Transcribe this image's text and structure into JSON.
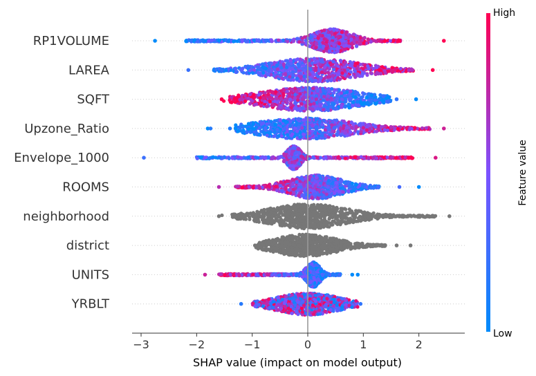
{
  "chart_data": {
    "type": "scatter",
    "subtype": "shap-beeswarm",
    "xlabel": "SHAP value (impact on model output)",
    "xlim": [
      -3.3,
      2.8
    ],
    "xticks": [
      -3,
      -2,
      -1,
      0,
      1,
      2
    ],
    "xtick_labels": [
      "−3",
      "−2",
      "−1",
      "0",
      "1",
      "2"
    ],
    "zero_line": 0,
    "grid": false,
    "colorbar": {
      "label": "Feature value",
      "high_label": "High",
      "low_label": "Low",
      "low_color": "#008bfb",
      "high_color": "#ff0052",
      "placement": "right"
    },
    "colors": {
      "numeric_missing": "#777777",
      "axis": "#333333",
      "zero_line": "#999999",
      "row_guides": "#cccccc"
    },
    "features": [
      {
        "name": "RP1VOLUME",
        "min": -2.75,
        "max": 2.45,
        "outliers": [
          1.65
        ],
        "peak": 0.45,
        "width": 0.22,
        "height": 17,
        "low_side": "left",
        "color_mode": "numeric",
        "dense_min": -2.2,
        "dense_max": 1.7
      },
      {
        "name": "LAREA",
        "min": -2.15,
        "max": 2.25,
        "outliers": [],
        "peak": 0.1,
        "width": 0.5,
        "height": 17,
        "low_side": "left",
        "color_mode": "numeric",
        "dense_min": -1.7,
        "dense_max": 1.9
      },
      {
        "name": "SQFT",
        "min": -1.55,
        "max": 1.6,
        "outliers": [
          1.95
        ],
        "peak": 0.05,
        "width": 0.55,
        "height": 17,
        "low_side": "right",
        "color_mode": "numeric",
        "dense_min": -1.4,
        "dense_max": 1.5
      },
      {
        "name": "Upzone_Ratio",
        "min": -1.3,
        "max": 2.45,
        "outliers": [
          -1.8,
          -1.75,
          -1.4
        ],
        "peak": -0.05,
        "width": 0.55,
        "height": 15,
        "low_side": "left",
        "color_mode": "numeric",
        "dense_min": -1.1,
        "dense_max": 2.2
      },
      {
        "name": "Envelope_1000",
        "min": -2.95,
        "max": 2.3,
        "outliers": [],
        "peak": -0.25,
        "width": 0.07,
        "height": 17,
        "low_side": "left",
        "color_mode": "numeric",
        "dense_min": -2.0,
        "dense_max": 1.9
      },
      {
        "name": "ROOMS",
        "min": -1.6,
        "max": 1.65,
        "outliers": [
          2.0
        ],
        "peak": 0.15,
        "width": 0.3,
        "height": 17,
        "low_side": "right",
        "color_mode": "numeric",
        "dense_min": -1.3,
        "dense_max": 1.3
      },
      {
        "name": "neighborhood",
        "min": -1.6,
        "max": 2.55,
        "outliers": [],
        "peak": 0.0,
        "width": 0.45,
        "height": 18,
        "low_side": "none",
        "color_mode": "missing",
        "dense_min": -1.4,
        "dense_max": 2.3
      },
      {
        "name": "district",
        "min": -0.95,
        "max": 1.6,
        "outliers": [
          1.85
        ],
        "peak": -0.05,
        "width": 0.35,
        "height": 16,
        "low_side": "none",
        "color_mode": "missing",
        "dense_min": -0.9,
        "dense_max": 1.4
      },
      {
        "name": "UNITS",
        "min": -1.85,
        "max": 0.8,
        "outliers": [
          0.9
        ],
        "peak": 0.1,
        "width": 0.07,
        "height": 18,
        "low_side": "right",
        "color_mode": "numeric",
        "dense_min": -1.6,
        "dense_max": 0.6
      },
      {
        "name": "YRBLT",
        "min": -1.2,
        "max": 0.95,
        "outliers": [],
        "peak": 0.0,
        "width": 0.35,
        "height": 16,
        "low_side": "none",
        "color_mode": "mixed",
        "dense_min": -1.0,
        "dense_max": 0.9
      }
    ]
  }
}
